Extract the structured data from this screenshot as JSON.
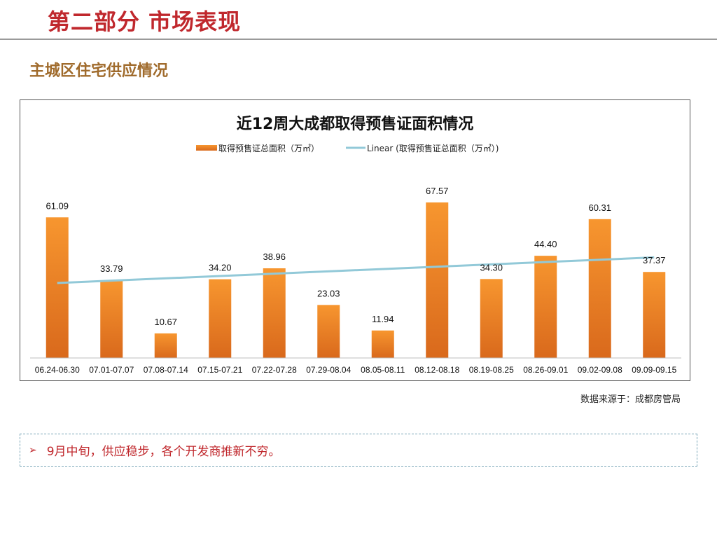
{
  "slide": {
    "title": "第二部分 市场表现",
    "section_title": "主城区住宅供应情况",
    "source_note": "数据来源于：成都房管局",
    "note": {
      "bullet_icon": "arrow-bullet-icon",
      "bullet_glyph": "➢",
      "text": "9月中旬，供应稳步，各个开发商推新不穷。"
    }
  },
  "chart_data": {
    "type": "bar",
    "title": "近12周大成都取得预售证面积情况",
    "categories": [
      "06.24-06.30",
      "07.01-07.07",
      "07.08-07.14",
      "07.15-07.21",
      "07.22-07.28",
      "07.29-08.04",
      "08.05-08.11",
      "08.12-08.18",
      "08.19-08.25",
      "08.26-09.01",
      "09.02-09.08",
      "09.09-09.15"
    ],
    "series": [
      {
        "name": "取得预售证总面积（万㎡）",
        "values": [
          61.09,
          33.79,
          10.67,
          34.2,
          38.96,
          23.03,
          11.94,
          67.57,
          34.3,
          44.4,
          60.31,
          37.37
        ],
        "labels": [
          "61.09",
          "33.79",
          "10.67",
          "34.20",
          "38.96",
          "23.03",
          "11.94",
          "67.57",
          "34.30",
          "44.40",
          "60.31",
          "37.37"
        ],
        "color": "#f28c28"
      }
    ],
    "trendline": {
      "name": "Linear (取得预售证总面积（万㎡）)",
      "type": "linear",
      "color": "#92c9d8"
    },
    "xlabel": "",
    "ylabel": "",
    "ylim": [
      0,
      70
    ],
    "grid": false,
    "legend": "top-center"
  }
}
